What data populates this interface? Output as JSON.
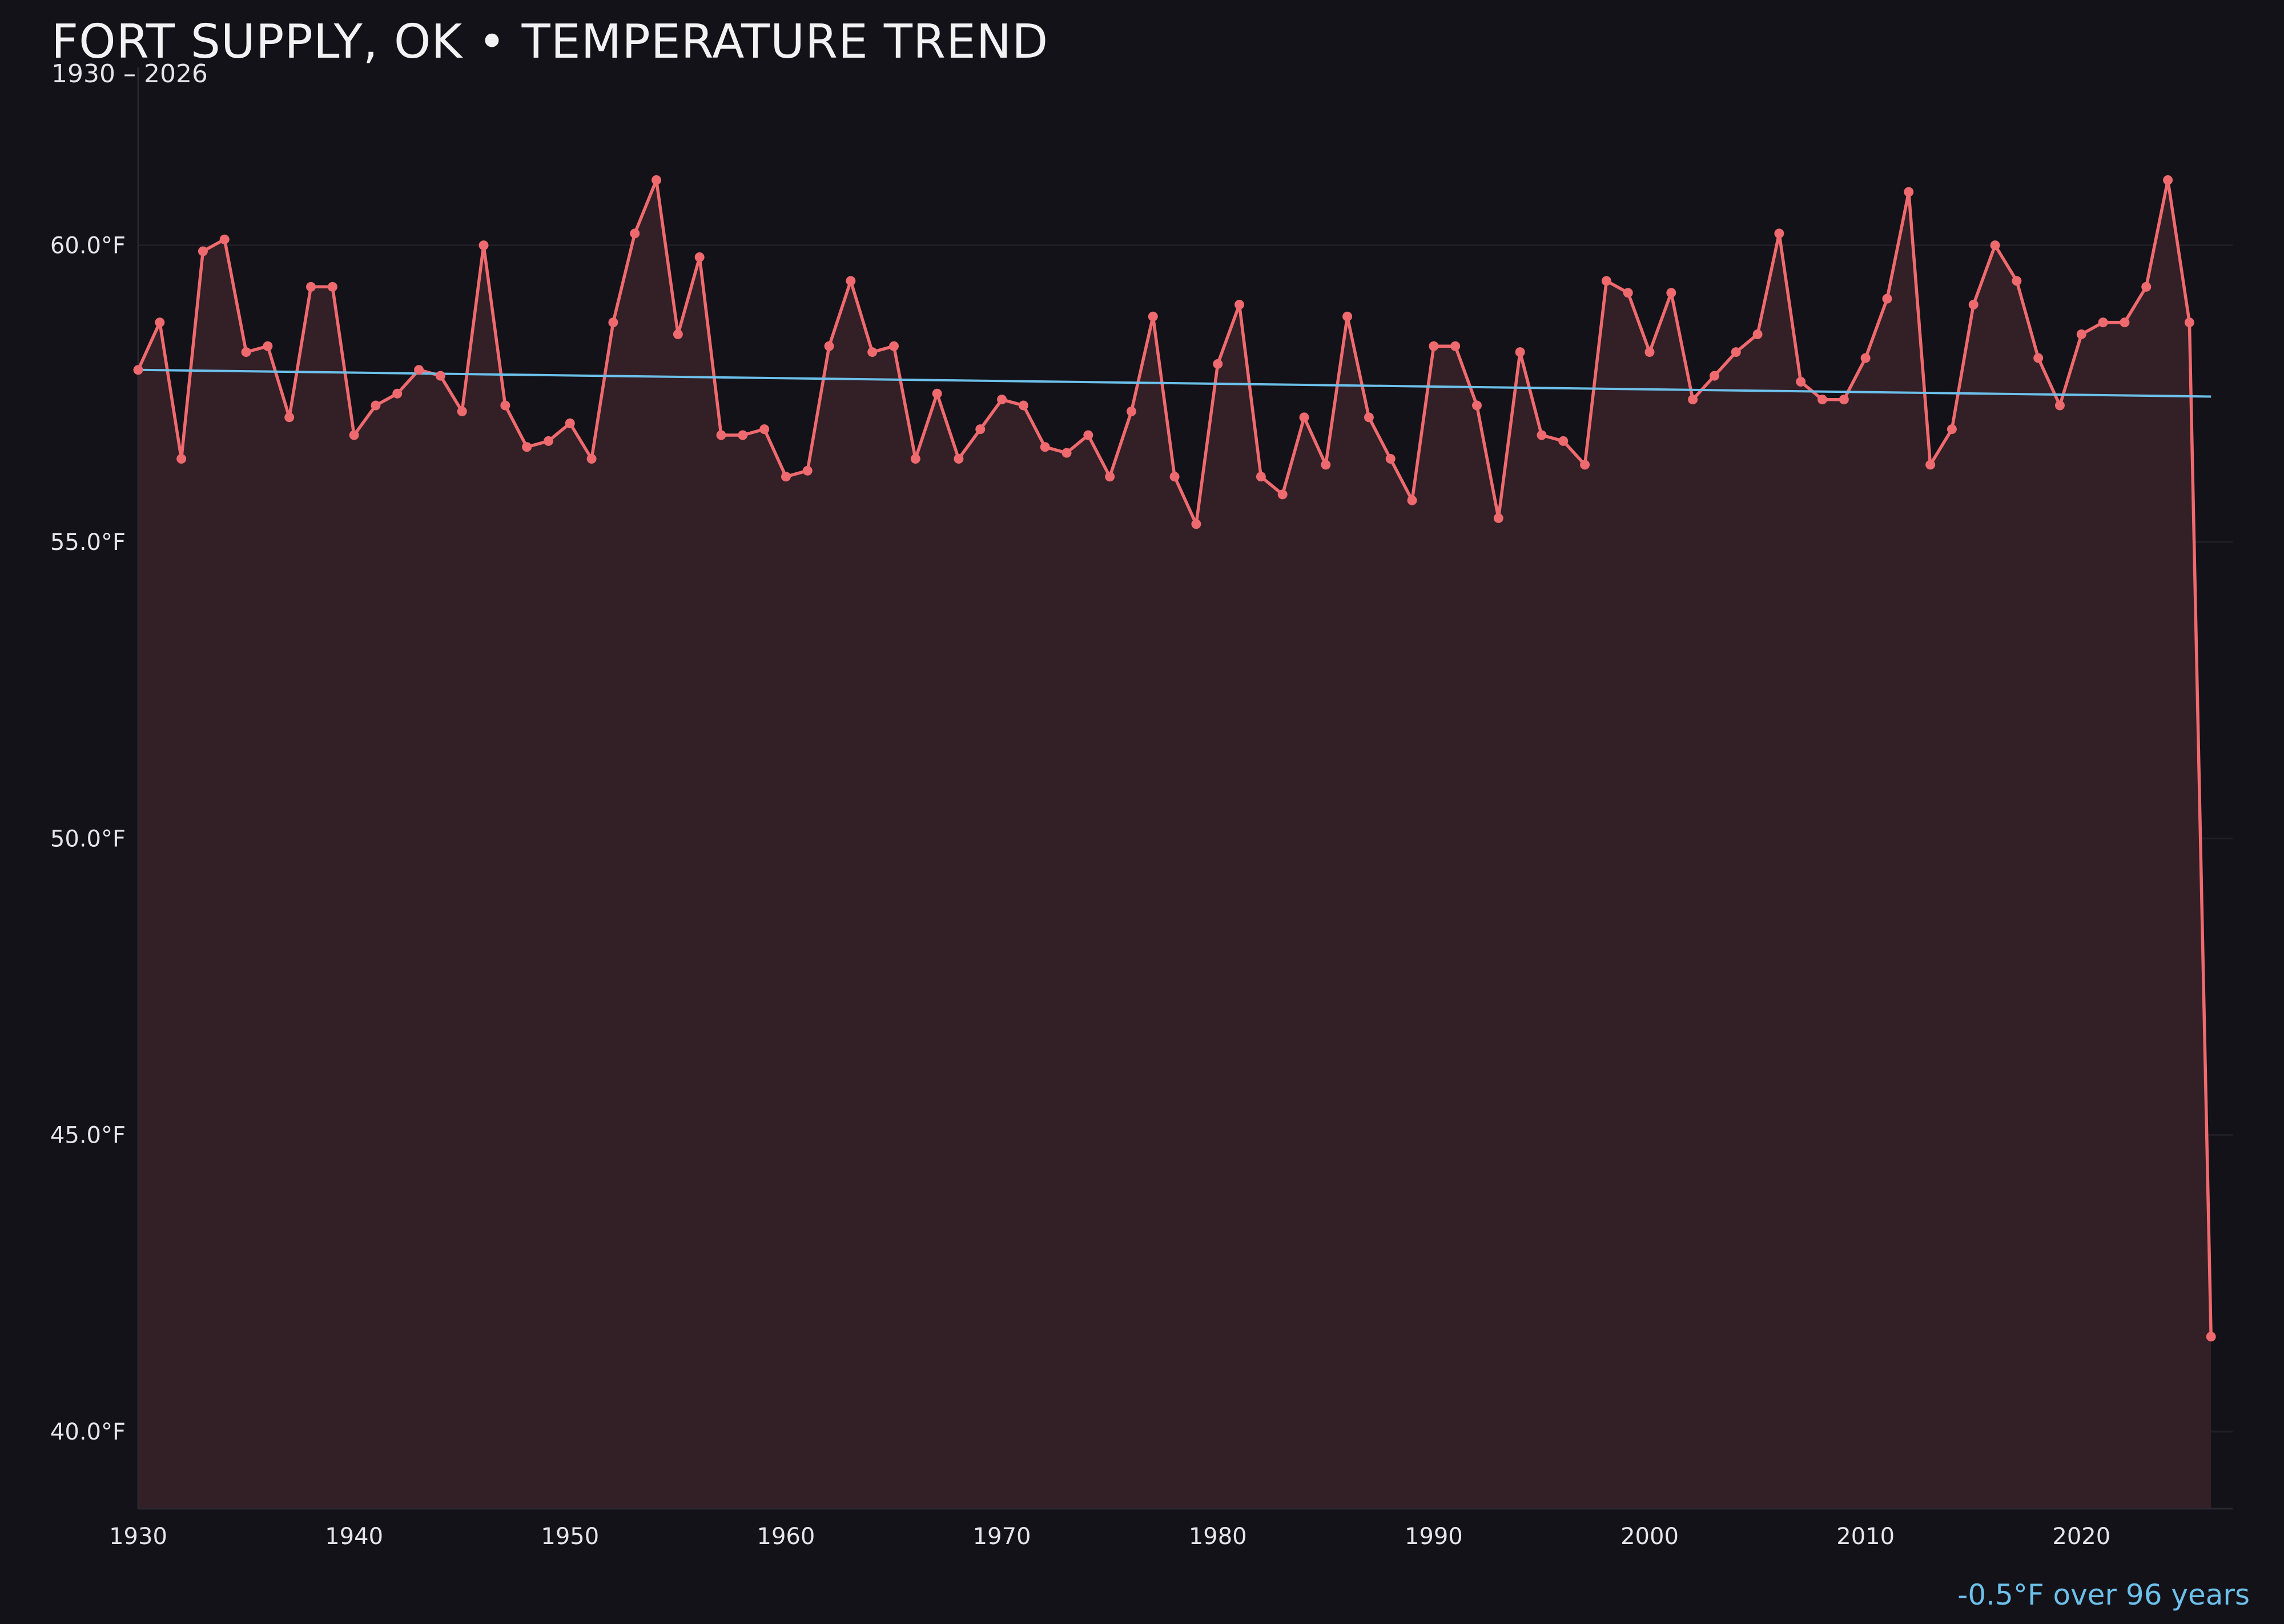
{
  "header": {
    "title": "FORT SUPPLY, OK • TEMPERATURE TREND",
    "subtitle": "1930 – 2026"
  },
  "footer": {
    "trend_note": "-0.5°F over 96 years"
  },
  "colors": {
    "background": "#131218",
    "series_line": "#ee6a6e",
    "area_fill": "#331f26",
    "trend_line": "#6cc0ea",
    "grid": "#221e27"
  },
  "chart_data": {
    "type": "line",
    "ylim": [
      38.7,
      63.0
    ],
    "xlim": [
      1930,
      2027
    ],
    "yticks": [
      40,
      45,
      50,
      55,
      60
    ],
    "ytick_labels": [
      "40.0°F",
      "45.0°F",
      "50.0°F",
      "55.0°F",
      "60.0°F"
    ],
    "xticks": [
      1930,
      1940,
      1950,
      1960,
      1970,
      1980,
      1990,
      2000,
      2010,
      2020
    ],
    "xtick_labels": [
      "1930",
      "1940",
      "1950",
      "1960",
      "1970",
      "1980",
      "1990",
      "2000",
      "2010",
      "2020"
    ],
    "grid": true,
    "area_fill": true,
    "x": [
      1930,
      1931,
      1932,
      1933,
      1934,
      1935,
      1936,
      1937,
      1938,
      1939,
      1940,
      1941,
      1942,
      1943,
      1944,
      1945,
      1946,
      1947,
      1948,
      1949,
      1950,
      1951,
      1952,
      1953,
      1954,
      1955,
      1956,
      1957,
      1958,
      1959,
      1960,
      1961,
      1962,
      1963,
      1964,
      1965,
      1966,
      1967,
      1968,
      1969,
      1970,
      1971,
      1972,
      1973,
      1974,
      1975,
      1976,
      1977,
      1978,
      1979,
      1980,
      1981,
      1982,
      1983,
      1984,
      1985,
      1986,
      1987,
      1988,
      1989,
      1990,
      1991,
      1992,
      1993,
      1994,
      1995,
      1996,
      1997,
      1998,
      1999,
      2000,
      2001,
      2002,
      2003,
      2004,
      2005,
      2006,
      2007,
      2008,
      2009,
      2010,
      2011,
      2012,
      2013,
      2014,
      2015,
      2016,
      2017,
      2018,
      2019,
      2020,
      2021,
      2022,
      2023,
      2024,
      2025,
      2026
    ],
    "series": [
      {
        "values": [
          57.9,
          58.7,
          56.4,
          59.9,
          60.1,
          58.2,
          58.3,
          57.1,
          59.3,
          59.3,
          56.8,
          57.3,
          57.5,
          57.9,
          57.8,
          57.2,
          60.0,
          57.3,
          56.6,
          56.7,
          57.0,
          56.4,
          58.7,
          60.2,
          61.1,
          58.5,
          59.8,
          56.8,
          56.8,
          56.9,
          56.1,
          56.2,
          58.3,
          59.4,
          58.2,
          58.3,
          56.4,
          57.5,
          56.4,
          56.9,
          57.4,
          57.3,
          56.6,
          56.5,
          56.8,
          56.1,
          57.2,
          58.8,
          56.1,
          55.3,
          58.0,
          59.0,
          56.1,
          55.8,
          57.1,
          56.3,
          58.8,
          57.1,
          56.4,
          55.7,
          58.3,
          58.3,
          57.3,
          55.4,
          58.2,
          56.8,
          56.7,
          56.3,
          59.4,
          59.2,
          58.2,
          59.2,
          57.4,
          57.8,
          58.2,
          58.5,
          60.2,
          57.7,
          57.4,
          57.4,
          58.1,
          59.1,
          60.9,
          56.3,
          56.9,
          59.0,
          60.0,
          59.4,
          58.1,
          57.3,
          58.5,
          58.7,
          58.7,
          59.3,
          61.1,
          58.7,
          41.6
        ]
      },
      {
        "type": "trend",
        "x": [
          1930,
          2026
        ],
        "values": [
          57.9,
          57.45
        ]
      }
    ]
  }
}
